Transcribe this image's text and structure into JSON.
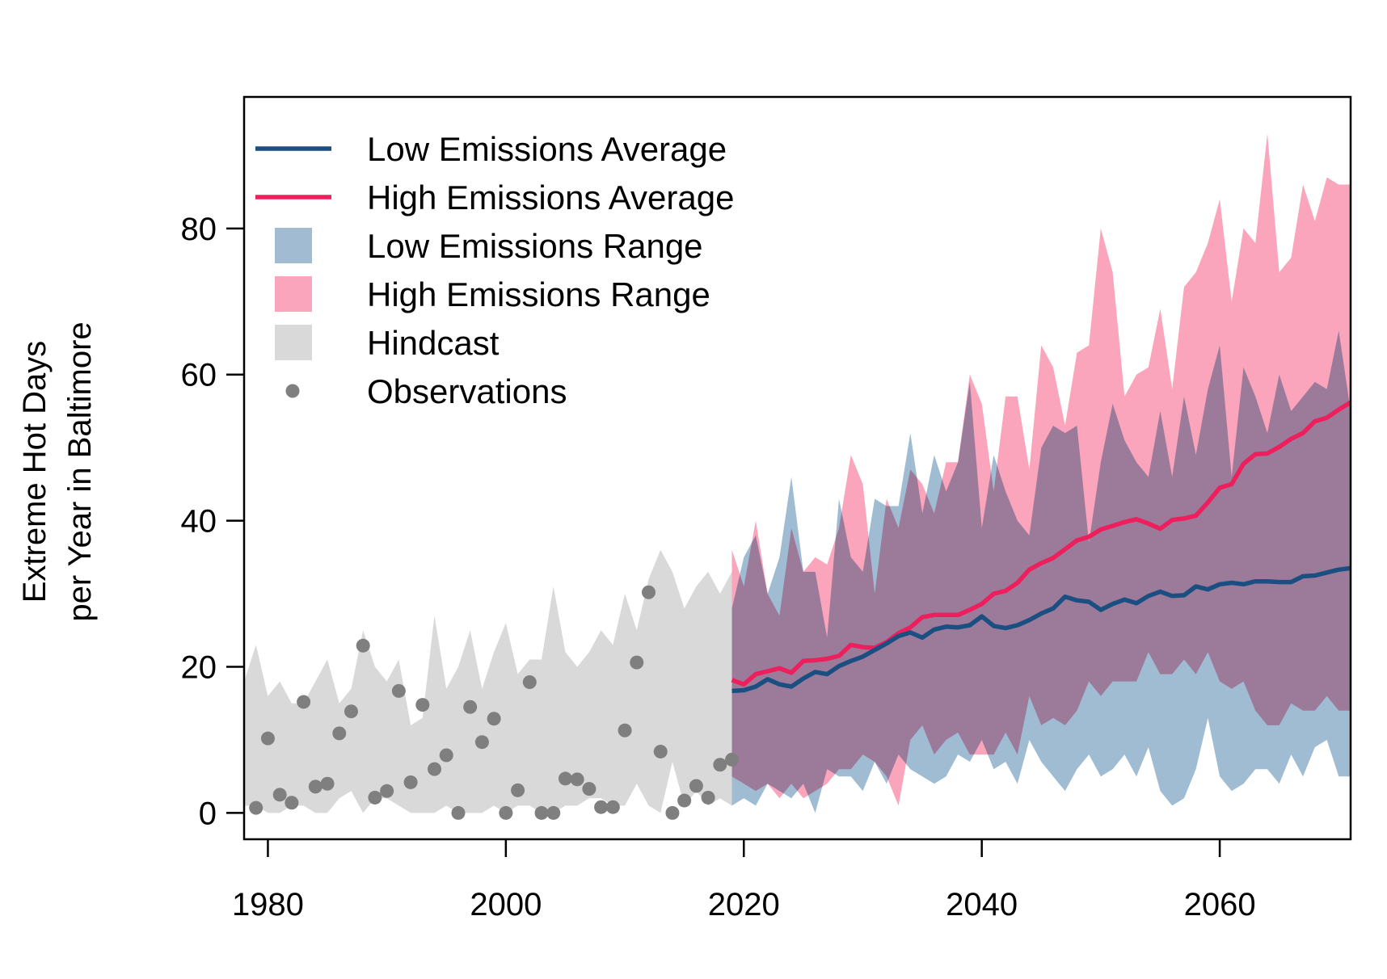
{
  "chart_data": {
    "type": "line",
    "ylabel_line1": "Extreme Hot Days",
    "ylabel_line2": "per Year in Baltimore",
    "xlim": [
      1978,
      2071
    ],
    "ylim": [
      -3.6,
      98
    ],
    "x_ticks": [
      1980,
      2000,
      2020,
      2040,
      2060
    ],
    "x_tick_labels": [
      "1980",
      "2000",
      "2020",
      "2040",
      "2060"
    ],
    "y_ticks": [
      0,
      20,
      40,
      60,
      80
    ],
    "y_tick_labels": [
      "0",
      "20",
      "40",
      "60",
      "80"
    ],
    "colors": {
      "low_line": "#1b4f82",
      "high_line": "#ee1f5d",
      "low_range": "#7fa6c3",
      "high_range": "#f87a9b",
      "hindcast": "#d9d9d9",
      "observations": "#7f7f7f"
    },
    "legend": {
      "position": "top-left",
      "items": [
        {
          "label": "Low Emissions Average",
          "symbol": "line",
          "color": "#1b4f82"
        },
        {
          "label": "High Emissions Average",
          "symbol": "line",
          "color": "#ee1f5d"
        },
        {
          "label": "Low Emissions Range",
          "symbol": "box",
          "color": "#a1bcd2"
        },
        {
          "label": "High Emissions Range",
          "symbol": "box",
          "color": "#fba5bc"
        },
        {
          "label": "Hindcast",
          "symbol": "box",
          "color": "#d9d9d9"
        },
        {
          "label": "Observations",
          "symbol": "point",
          "color": "#7f7f7f"
        }
      ]
    },
    "hindcast": {
      "x": [
        1978,
        1979,
        1980,
        1981,
        1982,
        1983,
        1984,
        1985,
        1986,
        1987,
        1988,
        1989,
        1990,
        1991,
        1992,
        1993,
        1994,
        1995,
        1996,
        1997,
        1998,
        1999,
        2000,
        2001,
        2002,
        2003,
        2004,
        2005,
        2006,
        2007,
        2008,
        2009,
        2010,
        2011,
        2012,
        2013,
        2014,
        2015,
        2016,
        2017,
        2018,
        2019
      ],
      "upper": [
        18,
        23,
        16,
        18,
        15,
        15,
        18,
        21,
        15,
        17,
        25,
        20,
        18,
        21,
        12,
        13,
        27,
        17,
        20,
        25,
        17,
        22,
        26,
        19,
        21,
        21,
        31,
        22,
        20,
        22,
        25,
        23,
        30,
        25,
        32,
        36,
        33,
        28,
        31,
        33,
        30,
        33
      ],
      "lower": [
        1,
        1,
        0,
        0,
        1,
        1,
        0,
        0,
        2,
        3,
        0,
        2,
        2,
        1,
        0,
        0,
        0,
        1,
        0,
        0,
        0,
        1,
        0,
        1,
        1,
        0,
        0,
        1,
        1,
        2,
        2,
        1,
        1,
        4,
        1,
        0,
        7,
        1,
        3,
        1,
        2,
        1
      ]
    },
    "observations": {
      "x": [
        1979,
        1980,
        1981,
        1982,
        1983,
        1984,
        1985,
        1986,
        1987,
        1988,
        1989,
        1990,
        1991,
        1992,
        1993,
        1994,
        1995,
        1996,
        1997,
        1998,
        1999,
        2000,
        2001,
        2002,
        2003,
        2004,
        2005,
        2006,
        2007,
        2008,
        2009,
        2010,
        2011,
        2012,
        2013,
        2014,
        2015,
        2016,
        2017,
        2018,
        2019
      ],
      "y": [
        0.7,
        10.2,
        2.5,
        1.4,
        15.2,
        3.6,
        4,
        10.9,
        13.9,
        22.9,
        2.1,
        3,
        16.7,
        4.2,
        14.8,
        6,
        7.9,
        0,
        14.5,
        9.7,
        12.9,
        0,
        3.1,
        17.9,
        0,
        0,
        4.7,
        4.6,
        3.3,
        0.8,
        0.8,
        11.3,
        20.6,
        30.2,
        8.4,
        0,
        1.7,
        3.7,
        2.1,
        6.6,
        7.3
      ]
    },
    "low_range": {
      "x": [
        2019,
        2020,
        2021,
        2022,
        2023,
        2024,
        2025,
        2026,
        2027,
        2028,
        2029,
        2030,
        2031,
        2032,
        2033,
        2034,
        2035,
        2036,
        2037,
        2038,
        2039,
        2040,
        2041,
        2042,
        2043,
        2044,
        2045,
        2046,
        2047,
        2048,
        2049,
        2050,
        2051,
        2052,
        2053,
        2054,
        2055,
        2056,
        2057,
        2058,
        2059,
        2060,
        2061,
        2062,
        2063,
        2064,
        2065,
        2066,
        2067,
        2068,
        2069,
        2070,
        2071
      ],
      "upper": [
        28,
        35,
        38,
        30,
        35,
        46,
        33,
        33,
        24,
        43,
        35,
        33,
        43,
        42,
        42,
        52,
        41,
        49,
        44,
        48,
        59,
        39,
        49,
        44,
        40,
        38,
        50,
        53,
        52,
        53,
        37,
        48,
        56,
        51,
        48,
        46,
        55,
        46,
        57,
        49,
        58,
        64,
        46,
        61,
        57,
        52,
        60,
        55,
        57,
        59,
        58,
        66,
        55
      ],
      "lower": [
        1,
        2,
        1,
        4,
        3,
        2,
        4,
        0,
        6,
        5,
        5,
        3,
        7,
        4,
        8,
        6,
        5,
        4,
        5,
        8,
        7,
        10,
        6,
        7,
        4,
        10,
        7,
        5,
        3,
        6,
        8,
        5,
        6,
        8,
        5,
        9,
        3,
        1,
        2,
        6,
        13,
        5,
        3,
        4,
        6,
        6,
        4,
        8,
        5,
        9,
        10,
        5,
        5
      ]
    },
    "high_range": {
      "x": [
        2019,
        2020,
        2021,
        2022,
        2023,
        2024,
        2025,
        2026,
        2027,
        2028,
        2029,
        2030,
        2031,
        2032,
        2033,
        2034,
        2035,
        2036,
        2037,
        2038,
        2039,
        2040,
        2041,
        2042,
        2043,
        2044,
        2045,
        2046,
        2047,
        2048,
        2049,
        2050,
        2051,
        2052,
        2053,
        2054,
        2055,
        2056,
        2057,
        2058,
        2059,
        2060,
        2061,
        2062,
        2063,
        2064,
        2065,
        2066,
        2067,
        2068,
        2069,
        2070,
        2071
      ],
      "upper": [
        36,
        31,
        40,
        30,
        27,
        39,
        33,
        35,
        34,
        39,
        49,
        45,
        30,
        43,
        39,
        47,
        45,
        41,
        48,
        48,
        60,
        56,
        44,
        57,
        57,
        47,
        64,
        61,
        53,
        63,
        64,
        80,
        74,
        57,
        60,
        61,
        69,
        58,
        72,
        74,
        78,
        84,
        70,
        80,
        78,
        93,
        74,
        76,
        86,
        81,
        87,
        86,
        86
      ],
      "lower": [
        5,
        4,
        3,
        4,
        2,
        4,
        2,
        3,
        4,
        6,
        6,
        8,
        7,
        5,
        1,
        10,
        12,
        8,
        10,
        11,
        8,
        8,
        8,
        11,
        8,
        16,
        12,
        13,
        12,
        14,
        18,
        16,
        18,
        18,
        18,
        22,
        19,
        19,
        21,
        19,
        22,
        18,
        17,
        18,
        14,
        12,
        12,
        15,
        14,
        14,
        16,
        14,
        14
      ]
    },
    "series": [
      {
        "name": "Low Emissions Average",
        "x": [
          2019,
          2020,
          2021,
          2022,
          2023,
          2024,
          2025,
          2026,
          2027,
          2028,
          2029,
          2030,
          2031,
          2032,
          2033,
          2034,
          2035,
          2036,
          2037,
          2038,
          2039,
          2040,
          2041,
          2042,
          2043,
          2044,
          2045,
          2046,
          2047,
          2048,
          2049,
          2050,
          2051,
          2052,
          2053,
          2054,
          2055,
          2056,
          2057,
          2058,
          2059,
          2060,
          2061,
          2062,
          2063,
          2064,
          2065,
          2066,
          2067,
          2068,
          2069,
          2070,
          2071
        ],
        "values": [
          16.7,
          16.8,
          17.3,
          18.3,
          17.6,
          17.3,
          18.4,
          19.3,
          19.0,
          20.1,
          20.8,
          21.4,
          22.3,
          23.2,
          24.2,
          24.7,
          24.0,
          25.1,
          25.5,
          25.4,
          25.7,
          26.9,
          25.6,
          25.3,
          25.7,
          26.4,
          27.3,
          28.0,
          29.6,
          29.1,
          28.9,
          27.8,
          28.6,
          29.2,
          28.7,
          29.7,
          30.3,
          29.7,
          29.8,
          31.0,
          30.6,
          31.3,
          31.5,
          31.3,
          31.7,
          31.7,
          31.6,
          31.6,
          32.4,
          32.5,
          32.9,
          33.3,
          33.5
        ]
      },
      {
        "name": "High Emissions Average",
        "x": [
          2019,
          2020,
          2021,
          2022,
          2023,
          2024,
          2025,
          2026,
          2027,
          2028,
          2029,
          2030,
          2031,
          2032,
          2033,
          2034,
          2035,
          2036,
          2037,
          2038,
          2039,
          2040,
          2041,
          2042,
          2043,
          2044,
          2045,
          2046,
          2047,
          2048,
          2049,
          2050,
          2051,
          2052,
          2053,
          2054,
          2055,
          2056,
          2057,
          2058,
          2059,
          2060,
          2061,
          2062,
          2063,
          2064,
          2065,
          2066,
          2067,
          2068,
          2069,
          2070,
          2071
        ],
        "values": [
          18.2,
          17.6,
          19.0,
          19.4,
          19.8,
          19.2,
          20.8,
          20.9,
          21.1,
          21.5,
          23.0,
          22.7,
          22.6,
          23.4,
          24.6,
          25.4,
          26.8,
          27.1,
          27.1,
          27.1,
          27.8,
          28.6,
          30.0,
          30.4,
          31.5,
          33.3,
          34.2,
          34.9,
          36.1,
          37.3,
          37.8,
          38.8,
          39.3,
          39.8,
          40.2,
          39.6,
          38.9,
          40.1,
          40.3,
          40.7,
          42.5,
          44.5,
          45.0,
          47.8,
          49.1,
          49.2,
          50.1,
          51.2,
          52.0,
          53.6,
          54.1,
          55.2,
          56.2
        ]
      }
    ]
  }
}
